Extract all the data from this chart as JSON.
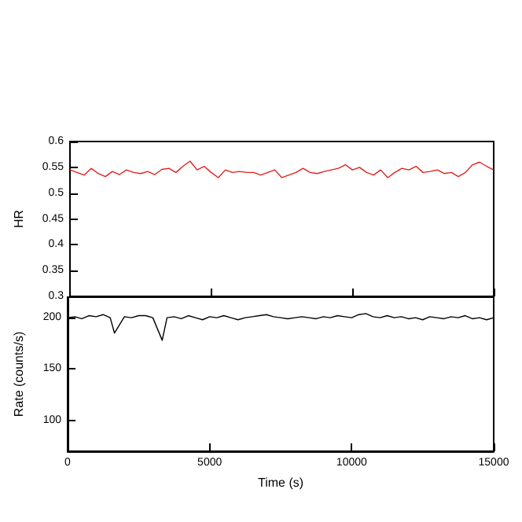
{
  "chart_data": [
    {
      "type": "line",
      "ylabel": "HR",
      "color": "#e0201c",
      "x": [
        0,
        250,
        500,
        750,
        1000,
        1250,
        1500,
        1750,
        2000,
        2250,
        2500,
        2750,
        3000,
        3250,
        3500,
        3750,
        4000,
        4250,
        4500,
        4750,
        5000,
        5250,
        5500,
        5750,
        6000,
        6250,
        6500,
        6750,
        7000,
        7250,
        7500,
        7750,
        8000,
        8250,
        8500,
        8750,
        9000,
        9250,
        9500,
        9750,
        10000,
        10250,
        10500,
        10750,
        11000,
        11250,
        11500,
        11750,
        12000,
        12250,
        12500,
        12750,
        13000,
        13250,
        13500,
        13750,
        14000,
        14250,
        14500,
        14750,
        15000
      ],
      "values": [
        0.545,
        0.54,
        0.535,
        0.548,
        0.538,
        0.532,
        0.542,
        0.536,
        0.545,
        0.54,
        0.538,
        0.542,
        0.536,
        0.546,
        0.548,
        0.54,
        0.552,
        0.562,
        0.545,
        0.552,
        0.54,
        0.53,
        0.545,
        0.54,
        0.542,
        0.54,
        0.54,
        0.535,
        0.54,
        0.545,
        0.53,
        0.535,
        0.54,
        0.548,
        0.54,
        0.538,
        0.542,
        0.545,
        0.548,
        0.555,
        0.545,
        0.55,
        0.54,
        0.535,
        0.545,
        0.53,
        0.54,
        0.548,
        0.545,
        0.552,
        0.54,
        0.542,
        0.545,
        0.538,
        0.54,
        0.532,
        0.54,
        0.555,
        0.56,
        0.552,
        0.545
      ],
      "xlim": [
        0,
        15000
      ],
      "xticks": [
        0,
        5000,
        10000,
        15000
      ],
      "ylim": [
        0.3,
        0.6
      ],
      "yticks": [
        0.3,
        0.35,
        0.4,
        0.45,
        0.5,
        0.55,
        0.6
      ],
      "tick_labels": "y"
    },
    {
      "type": "line",
      "xlabel": "Time (s)",
      "ylabel": "Rate (counts/s)",
      "color": "#000000",
      "x": [
        0,
        250,
        500,
        750,
        1000,
        1250,
        1500,
        1650,
        2000,
        2250,
        2500,
        2750,
        3000,
        3330,
        3500,
        3750,
        4000,
        4250,
        4500,
        4750,
        5000,
        5250,
        5500,
        5750,
        6000,
        6250,
        6500,
        6750,
        7000,
        7250,
        7500,
        7750,
        8000,
        8250,
        8500,
        8750,
        9000,
        9250,
        9500,
        9750,
        10000,
        10250,
        10500,
        10750,
        11000,
        11250,
        11500,
        11750,
        12000,
        12250,
        12500,
        12750,
        13000,
        13250,
        13500,
        13750,
        14000,
        14250,
        14500,
        14750,
        15000
      ],
      "values": [
        200,
        201,
        199,
        202,
        201,
        203,
        200,
        185,
        201,
        200,
        202,
        202,
        200,
        178,
        200,
        201,
        199,
        202,
        200,
        198,
        201,
        200,
        202,
        200,
        198,
        200,
        201,
        202,
        203,
        201,
        200,
        199,
        200,
        201,
        200,
        199,
        201,
        200,
        202,
        201,
        200,
        203,
        204,
        201,
        200,
        202,
        200,
        201,
        199,
        200,
        198,
        201,
        200,
        199,
        201,
        200,
        202,
        199,
        200,
        198,
        200
      ],
      "xlim": [
        0,
        15000
      ],
      "xticks": [
        0,
        5000,
        10000,
        15000
      ],
      "ylim": [
        70,
        220
      ],
      "yticks": [
        100,
        150,
        200
      ]
    }
  ]
}
